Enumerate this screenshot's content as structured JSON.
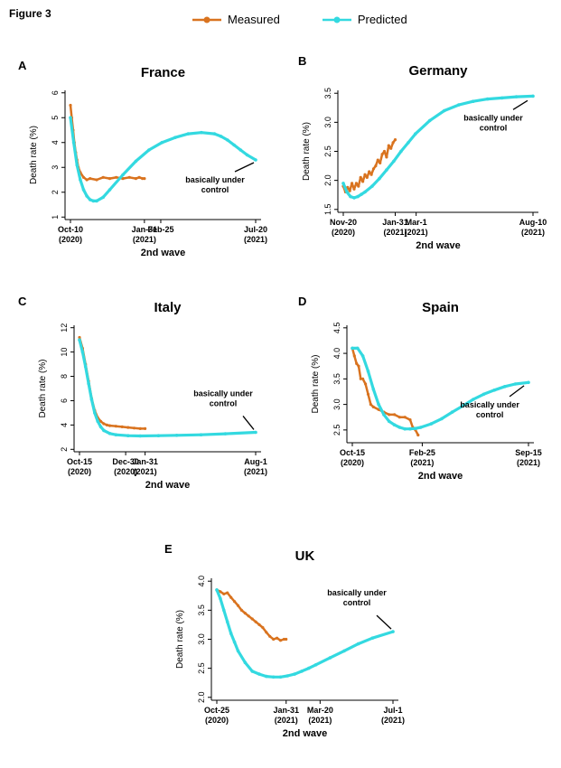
{
  "figure_title": "Figure 3",
  "legend": {
    "measured": "Measured",
    "predicted": "Predicted"
  },
  "colors": {
    "measured": "#d9731f",
    "predicted": "#33d9e0"
  },
  "annotation": [
    "basically under",
    "control"
  ],
  "chart_data": [
    {
      "type": "line",
      "panel": "A",
      "title": "France",
      "ylabel": "Death rate (%)",
      "xlabel": "2nd wave",
      "ylim": [
        0.9,
        6.1
      ],
      "yticks": [
        1,
        2,
        3,
        4,
        5,
        6
      ],
      "ytick_labels": [
        "1",
        "2",
        "3",
        "4",
        "5",
        "6"
      ],
      "xlim": [
        0,
        283
      ],
      "xticks": [
        {
          "x": 0,
          "l1": "Oct-10",
          "l2": "(2020)"
        },
        {
          "x": 113,
          "l1": "Jan-31",
          "l2": "(2021)"
        },
        {
          "x": 138,
          "l1": "Feb-25",
          "l2": ""
        },
        {
          "x": 283,
          "l1": "Jul-20",
          "l2": "(2021)"
        }
      ],
      "series": [
        {
          "name": "Measured",
          "x": [
            0,
            2,
            4,
            6,
            8,
            10,
            12,
            15,
            20,
            25,
            30,
            40,
            50,
            60,
            70,
            80,
            90,
            100,
            105,
            110,
            113
          ],
          "y": [
            5.5,
            5.0,
            4.5,
            4.0,
            3.6,
            3.3,
            3.0,
            2.8,
            2.6,
            2.5,
            2.55,
            2.5,
            2.6,
            2.55,
            2.6,
            2.55,
            2.6,
            2.55,
            2.6,
            2.55,
            2.55
          ]
        },
        {
          "name": "Predicted",
          "x": [
            0,
            5,
            10,
            15,
            20,
            25,
            30,
            35,
            40,
            50,
            60,
            80,
            100,
            120,
            140,
            160,
            180,
            200,
            220,
            230,
            240,
            250,
            260,
            270,
            283
          ],
          "y": [
            5.0,
            4.0,
            3.1,
            2.5,
            2.1,
            1.85,
            1.7,
            1.65,
            1.65,
            1.8,
            2.1,
            2.7,
            3.25,
            3.7,
            4.0,
            4.2,
            4.35,
            4.4,
            4.35,
            4.25,
            4.1,
            3.9,
            3.7,
            3.5,
            3.3
          ]
        }
      ],
      "annotation_at": {
        "x": 283,
        "y": 3.3
      }
    },
    {
      "type": "line",
      "panel": "B",
      "title": "Germany",
      "ylabel": "Death rate (%)",
      "xlabel": "2nd wave",
      "ylim": [
        1.45,
        3.55
      ],
      "yticks": [
        1.5,
        2.0,
        2.5,
        3.0,
        3.5
      ],
      "ytick_labels": [
        "1.5",
        "2.0",
        "2.5",
        "3.0",
        "3.5"
      ],
      "xlim": [
        0,
        263
      ],
      "xticks": [
        {
          "x": 0,
          "l1": "Nov-20",
          "l2": "(2020)"
        },
        {
          "x": 72,
          "l1": "Jan-31",
          "l2": "(2021)"
        },
        {
          "x": 101,
          "l1": "Mar-1",
          "l2": "(2021)"
        },
        {
          "x": 263,
          "l1": "Aug-10",
          "l2": "(2021)"
        }
      ],
      "series": [
        {
          "name": "Measured",
          "x": [
            0,
            3,
            6,
            9,
            12,
            15,
            18,
            21,
            24,
            27,
            30,
            33,
            36,
            39,
            42,
            45,
            48,
            51,
            54,
            57,
            60,
            63,
            66,
            69,
            72
          ],
          "y": [
            1.9,
            1.8,
            1.88,
            1.82,
            1.95,
            1.85,
            1.95,
            1.9,
            2.05,
            1.98,
            2.1,
            2.05,
            2.15,
            2.1,
            2.2,
            2.25,
            2.35,
            2.3,
            2.45,
            2.5,
            2.4,
            2.6,
            2.55,
            2.65,
            2.7
          ]
        },
        {
          "name": "Predicted",
          "x": [
            0,
            5,
            10,
            15,
            20,
            25,
            30,
            40,
            50,
            60,
            70,
            80,
            90,
            100,
            120,
            140,
            160,
            180,
            200,
            220,
            240,
            263
          ],
          "y": [
            1.95,
            1.8,
            1.72,
            1.7,
            1.72,
            1.76,
            1.8,
            1.9,
            2.03,
            2.18,
            2.33,
            2.5,
            2.65,
            2.8,
            3.03,
            3.2,
            3.3,
            3.36,
            3.4,
            3.42,
            3.44,
            3.45
          ]
        }
      ],
      "annotation_at": {
        "x": 258,
        "y": 3.42
      }
    },
    {
      "type": "line",
      "panel": "C",
      "title": "Italy",
      "ylabel": "Death rate (%)",
      "xlabel": "2nd wave",
      "ylim": [
        1.8,
        12.2
      ],
      "yticks": [
        2,
        4,
        6,
        8,
        10,
        12
      ],
      "ytick_labels": [
        "2",
        "4",
        "6",
        "8",
        "10",
        "12"
      ],
      "xlim": [
        0,
        290
      ],
      "xticks": [
        {
          "x": 0,
          "l1": "Oct-15",
          "l2": "(2020)"
        },
        {
          "x": 76,
          "l1": "Dec-30",
          "l2": "(2020)"
        },
        {
          "x": 108,
          "l1": "Jan-31",
          "l2": "(2021)"
        },
        {
          "x": 290,
          "l1": "Aug-1",
          "l2": "(2021)"
        }
      ],
      "series": [
        {
          "name": "Measured",
          "x": [
            0,
            5,
            10,
            15,
            20,
            25,
            30,
            35,
            40,
            45,
            50,
            60,
            70,
            80,
            90,
            100,
            108
          ],
          "y": [
            11.2,
            10.3,
            9.0,
            7.6,
            6.2,
            5.2,
            4.6,
            4.3,
            4.1,
            4.0,
            3.95,
            3.9,
            3.85,
            3.8,
            3.75,
            3.7,
            3.7
          ]
        },
        {
          "name": "Predicted",
          "x": [
            0,
            5,
            10,
            15,
            20,
            25,
            30,
            35,
            40,
            50,
            60,
            80,
            100,
            130,
            160,
            200,
            240,
            290
          ],
          "y": [
            11.0,
            10.0,
            8.8,
            7.4,
            6.1,
            5.0,
            4.3,
            3.85,
            3.55,
            3.3,
            3.2,
            3.12,
            3.1,
            3.12,
            3.15,
            3.2,
            3.28,
            3.4
          ]
        }
      ],
      "annotation_at": {
        "x": 290,
        "y": 3.4
      }
    },
    {
      "type": "line",
      "panel": "D",
      "title": "Spain",
      "ylabel": "Death rate (%)",
      "xlabel": "2nd wave",
      "ylim": [
        2.25,
        4.55
      ],
      "yticks": [
        2.5,
        3.0,
        3.5,
        4.0,
        4.5
      ],
      "ytick_labels": [
        "2.5",
        "3.0",
        "3.5",
        "4.0",
        "4.5"
      ],
      "xlim": [
        0,
        335
      ],
      "xticks": [
        {
          "x": 0,
          "l1": "Oct-15",
          "l2": "(2020)"
        },
        {
          "x": 133,
          "l1": "Feb-25",
          "l2": "(2021)"
        },
        {
          "x": 335,
          "l1": "Sep-15",
          "l2": "(2021)"
        }
      ],
      "series": [
        {
          "name": "Measured",
          "x": [
            0,
            4,
            8,
            12,
            16,
            20,
            25,
            30,
            35,
            40,
            50,
            60,
            70,
            80,
            90,
            100,
            110,
            115,
            120,
            125
          ],
          "y": [
            4.1,
            3.95,
            3.8,
            3.75,
            3.5,
            3.5,
            3.4,
            3.2,
            3.0,
            2.95,
            2.9,
            2.85,
            2.8,
            2.8,
            2.75,
            2.75,
            2.7,
            2.55,
            2.5,
            2.4
          ]
        },
        {
          "name": "Predicted",
          "x": [
            0,
            10,
            20,
            30,
            40,
            50,
            60,
            70,
            80,
            90,
            100,
            110,
            120,
            130,
            150,
            170,
            190,
            210,
            230,
            250,
            270,
            290,
            310,
            335
          ],
          "y": [
            4.1,
            4.1,
            3.95,
            3.65,
            3.3,
            3.0,
            2.8,
            2.67,
            2.6,
            2.55,
            2.52,
            2.52,
            2.53,
            2.55,
            2.62,
            2.72,
            2.85,
            2.97,
            3.1,
            3.2,
            3.28,
            3.35,
            3.4,
            3.43
          ]
        }
      ],
      "annotation_at": {
        "x": 330,
        "y": 3.42
      }
    },
    {
      "type": "line",
      "panel": "E",
      "title": "UK",
      "ylabel": "Death rate (%)",
      "xlabel": "2nd wave",
      "ylim": [
        1.95,
        4.05
      ],
      "yticks": [
        2.0,
        2.5,
        3.0,
        3.5,
        4.0
      ],
      "ytick_labels": [
        "2.0",
        "2.5",
        "3.0",
        "3.5",
        "4.0"
      ],
      "xlim": [
        0,
        249
      ],
      "xticks": [
        {
          "x": 0,
          "l1": "Oct-25",
          "l2": "(2020)"
        },
        {
          "x": 98,
          "l1": "Jan-31",
          "l2": "(2021)"
        },
        {
          "x": 146,
          "l1": "Mar-20",
          "l2": "(2021)"
        },
        {
          "x": 249,
          "l1": "Jul-1",
          "l2": "(2021)"
        }
      ],
      "series": [
        {
          "name": "Measured",
          "x": [
            0,
            5,
            10,
            15,
            20,
            25,
            30,
            35,
            40,
            45,
            50,
            55,
            60,
            65,
            70,
            75,
            80,
            85,
            90,
            95,
            98
          ],
          "y": [
            3.85,
            3.82,
            3.78,
            3.8,
            3.72,
            3.65,
            3.58,
            3.5,
            3.45,
            3.4,
            3.35,
            3.3,
            3.25,
            3.2,
            3.12,
            3.05,
            3.0,
            3.02,
            2.98,
            3.0,
            3.0
          ]
        },
        {
          "name": "Predicted",
          "x": [
            0,
            5,
            10,
            15,
            20,
            25,
            30,
            40,
            50,
            60,
            70,
            80,
            90,
            100,
            110,
            120,
            130,
            140,
            160,
            180,
            200,
            220,
            249
          ],
          "y": [
            3.85,
            3.7,
            3.5,
            3.3,
            3.1,
            2.95,
            2.8,
            2.6,
            2.45,
            2.4,
            2.36,
            2.35,
            2.35,
            2.37,
            2.4,
            2.45,
            2.5,
            2.56,
            2.68,
            2.8,
            2.92,
            3.02,
            3.13
          ]
        }
      ],
      "annotation_at": {
        "x": 249,
        "y": 3.13
      }
    }
  ]
}
